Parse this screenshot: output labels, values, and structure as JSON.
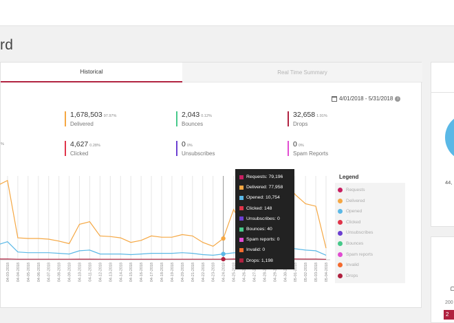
{
  "page": {
    "title": "rd"
  },
  "tabs": [
    {
      "label": "Historical",
      "active": true
    },
    {
      "label": "Real Time Summary",
      "active": false
    }
  ],
  "date_range": "4/01/2018 - 5/31/2018",
  "stats": [
    {
      "value": "1,678,503",
      "pct": "97.97%",
      "label": "Delivered",
      "color": "#f5a742"
    },
    {
      "value": "2,043",
      "pct": "0.12%",
      "label": "Bounces",
      "color": "#46c98a"
    },
    {
      "value": "32,658",
      "pct": "1.91%",
      "label": "Drops",
      "color": "#b0213f"
    },
    {
      "value": "4,627",
      "pct": "0.28%",
      "label": "Clicked",
      "color": "#e0344a"
    },
    {
      "value": "0",
      "pct": "0%",
      "label": "Unsubscribes",
      "color": "#6b3fd1"
    },
    {
      "value": "0",
      "pct": "0%",
      "label": "Spam Reports",
      "color": "#e14bd1"
    }
  ],
  "cut_off_pct": "%",
  "tooltip": [
    {
      "text": "Requests: 79,196",
      "color": "#c71f61"
    },
    {
      "text": "Delivered: 77,958",
      "color": "#f5a742"
    },
    {
      "text": "Opened: 10,754",
      "color": "#5ab8e6"
    },
    {
      "text": "Clicked: 148",
      "color": "#e0344a"
    },
    {
      "text": "Unsubscribes: 0",
      "color": "#6b3fd1"
    },
    {
      "text": "Bounces: 40",
      "color": "#46c98a"
    },
    {
      "text": "Spam reports: 0",
      "color": "#e14bd1"
    },
    {
      "text": "Invalid: 0",
      "color": "#f46b2e"
    },
    {
      "text": "Drops: 1,198",
      "color": "#b0213f"
    }
  ],
  "legend": {
    "title": "Legend",
    "items": [
      {
        "label": "Requests",
        "color": "#c71f61"
      },
      {
        "label": "Delivered",
        "color": "#f5a742"
      },
      {
        "label": "Opened",
        "color": "#5ab8e6"
      },
      {
        "label": "Clicked",
        "color": "#e0344a"
      },
      {
        "label": "Unsubscribes",
        "color": "#6b3fd1"
      },
      {
        "label": "Bounces",
        "color": "#46c98a"
      },
      {
        "label": "Spam reports",
        "color": "#e14bd1"
      },
      {
        "label": "Invalid",
        "color": "#f46b2e"
      },
      {
        "label": "Drops",
        "color": "#b0213f"
      }
    ]
  },
  "chart_data": {
    "type": "line",
    "x": [
      "04-02-2018",
      "04-03-2018",
      "04-04-2018",
      "04-05-2018",
      "04-06-2018",
      "04-07-2018",
      "04-08-2018",
      "04-09-2018",
      "04-10-2018",
      "04-11-2018",
      "04-12-2018",
      "04-13-2018",
      "04-14-2018",
      "04-15-2018",
      "04-16-2018",
      "04-17-2018",
      "04-18-2018",
      "04-19-2018",
      "04-20-2018",
      "04-21-2018",
      "04-22-2018",
      "04-23-2018",
      "04-24-2018",
      "04-25-2018",
      "04-26-2018",
      "04-27-2018",
      "04-28-2018",
      "04-29-2018",
      "04-30-2018",
      "05-01-2018",
      "05-02-2018",
      "05-03-2018",
      "05-04-2018"
    ],
    "ylim": [
      0,
      130000
    ],
    "grid": true,
    "highlight_index": 22,
    "series": [
      {
        "name": "Delivered",
        "color": "#f5a742",
        "values": [
          115000,
          123000,
          34000,
          33000,
          33000,
          32000,
          29000,
          25000,
          55000,
          59000,
          37000,
          36000,
          34000,
          27000,
          30000,
          37000,
          35000,
          35000,
          39000,
          37000,
          27000,
          21000,
          33000,
          77958,
          49000,
          50000,
          61000,
          103000,
          121000,
          101000,
          87000,
          83000,
          18000
        ]
      },
      {
        "name": "Opened",
        "color": "#5ab8e6",
        "values": [
          23000,
          28000,
          12000,
          11000,
          11000,
          11000,
          10000,
          9000,
          14000,
          15000,
          9000,
          9000,
          9000,
          8000,
          9000,
          10000,
          10000,
          10000,
          11000,
          10000,
          8000,
          7000,
          9000,
          10754,
          11000,
          11000,
          12000,
          18000,
          20000,
          17000,
          15000,
          14000,
          7000
        ]
      },
      {
        "name": "Drops",
        "color": "#b0213f",
        "values": [
          1200,
          1300,
          900,
          900,
          900,
          900,
          900,
          800,
          1000,
          1000,
          900,
          900,
          900,
          800,
          800,
          900,
          900,
          900,
          900,
          900,
          800,
          800,
          900,
          1198,
          1000,
          1000,
          1100,
          1200,
          1300,
          1200,
          1100,
          1100,
          700
        ]
      }
    ]
  },
  "side": {
    "num1": "44,",
    "num2": "200",
    "badge": "2"
  }
}
